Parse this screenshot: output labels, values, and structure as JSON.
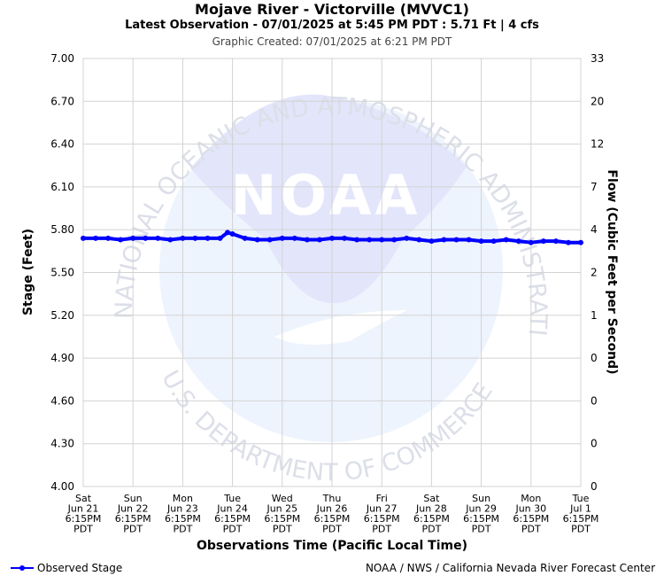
{
  "header": {
    "title": "Mojave River - Victorville (MVVC1)",
    "subtitle": "Latest Observation - 07/01/2025 at 5:45 PM PDT : 5.71 Ft | 4 cfs",
    "created": "Graphic Created: 07/01/2025 at 6:21 PM PDT"
  },
  "footer": {
    "legend_label": "Observed Stage",
    "credit": "NOAA / NWS / California Nevada River Forecast Center"
  },
  "watermark": {
    "logo_text": "NOAA",
    "top_arc": "NATIONAL OCEANIC AND ATMOSPHERIC ADMINISTRATION",
    "bottom_arc": "U.S. DEPARTMENT OF COMMERCE"
  },
  "chart_data": {
    "type": "line",
    "xlabel": "Observations Time (Pacific Local Time)",
    "ylabel": "Stage (Feet)",
    "y2label": "Flow (Cubic Feet per Second)",
    "ylim": [
      4.0,
      7.0
    ],
    "y_ticks": [
      "4.00",
      "4.30",
      "4.60",
      "4.90",
      "5.20",
      "5.50",
      "5.80",
      "6.10",
      "6.40",
      "6.70",
      "7.00"
    ],
    "y2_ticks": [
      "0",
      "0",
      "0",
      "0",
      "1",
      "2",
      "4",
      "7",
      "12",
      "20",
      "33"
    ],
    "x_ticks": [
      [
        "Sat",
        "Jun 21",
        "6:15PM",
        "PDT"
      ],
      [
        "Sun",
        "Jun 22",
        "6:15PM",
        "PDT"
      ],
      [
        "Mon",
        "Jun 23",
        "6:15PM",
        "PDT"
      ],
      [
        "Tue",
        "Jun 24",
        "6:15PM",
        "PDT"
      ],
      [
        "Wed",
        "Jun 25",
        "6:15PM",
        "PDT"
      ],
      [
        "Thu",
        "Jun 26",
        "6:15PM",
        "PDT"
      ],
      [
        "Fri",
        "Jun 27",
        "6:15PM",
        "PDT"
      ],
      [
        "Sat",
        "Jun 28",
        "6:15PM",
        "PDT"
      ],
      [
        "Sun",
        "Jun 29",
        "6:15PM",
        "PDT"
      ],
      [
        "Mon",
        "Jun 30",
        "6:15PM",
        "PDT"
      ],
      [
        "Tue",
        "Jul 1",
        "6:15PM",
        "PDT"
      ]
    ],
    "grid": true,
    "line_color": "#0000ff",
    "series": [
      {
        "name": "Observed Stage",
        "x": [
          0,
          0.25,
          0.5,
          0.75,
          1,
          1.25,
          1.5,
          1.75,
          2,
          2.25,
          2.5,
          2.75,
          2.9,
          3,
          3.25,
          3.5,
          3.75,
          4,
          4.25,
          4.5,
          4.75,
          5,
          5.25,
          5.5,
          5.75,
          6,
          6.25,
          6.5,
          6.75,
          7,
          7.25,
          7.5,
          7.75,
          8,
          8.25,
          8.5,
          8.75,
          9,
          9.25,
          9.5,
          9.75,
          10
        ],
        "values": [
          5.74,
          5.74,
          5.74,
          5.73,
          5.74,
          5.74,
          5.74,
          5.73,
          5.74,
          5.74,
          5.74,
          5.74,
          5.78,
          5.77,
          5.74,
          5.73,
          5.73,
          5.74,
          5.74,
          5.73,
          5.73,
          5.74,
          5.74,
          5.73,
          5.73,
          5.73,
          5.73,
          5.74,
          5.73,
          5.72,
          5.73,
          5.73,
          5.73,
          5.72,
          5.72,
          5.73,
          5.72,
          5.71,
          5.72,
          5.72,
          5.71,
          5.71
        ]
      }
    ]
  }
}
